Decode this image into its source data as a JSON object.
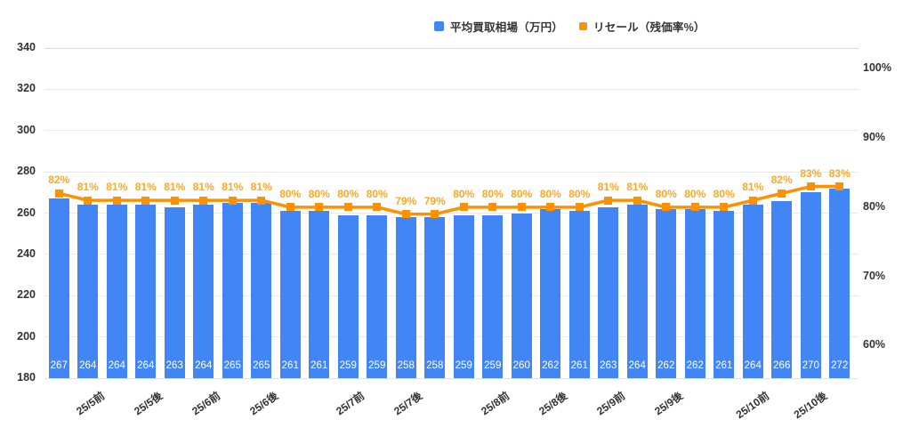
{
  "chart_data": {
    "type": "bar",
    "title": "",
    "legend": [
      {
        "label": "平均買取相場（万円）",
        "color": "#4285F4"
      },
      {
        "label": "リセール（残価率%）",
        "color": "#FF9100"
      }
    ],
    "series": [
      {
        "name": "平均買取相場（万円）",
        "type": "bar",
        "axis": "left",
        "color": "#4285F4",
        "values": [
          267,
          264,
          264,
          264,
          263,
          264,
          265,
          265,
          261,
          261,
          259,
          259,
          258,
          258,
          259,
          259,
          260,
          262,
          261,
          263,
          264,
          262,
          262,
          261,
          264,
          266,
          270,
          272
        ]
      },
      {
        "name": "リセール（残価率%）",
        "type": "line",
        "axis": "right",
        "color": "#FF9100",
        "label_color": "#FFA726",
        "values": [
          82,
          81,
          81,
          81,
          81,
          81,
          81,
          81,
          80,
          80,
          80,
          80,
          79,
          79,
          80,
          80,
          80,
          80,
          80,
          81,
          81,
          80,
          80,
          80,
          81,
          82,
          83,
          83
        ]
      }
    ],
    "x_axis": {
      "tick_labels": [
        {
          "text": "25/5前",
          "bar_index": 1
        },
        {
          "text": "25/5後",
          "bar_index": 3
        },
        {
          "text": "25/6前",
          "bar_index": 5
        },
        {
          "text": "25/6後",
          "bar_index": 7
        },
        {
          "text": "25/7前",
          "bar_index": 10
        },
        {
          "text": "25/7後",
          "bar_index": 12
        },
        {
          "text": "25/8前",
          "bar_index": 15
        },
        {
          "text": "25/8後",
          "bar_index": 17
        },
        {
          "text": "25/9前",
          "bar_index": 19
        },
        {
          "text": "25/9後",
          "bar_index": 21
        },
        {
          "text": "25/10前",
          "bar_index": 24
        },
        {
          "text": "25/10後",
          "bar_index": 26
        }
      ]
    },
    "left_axis": {
      "min": 180,
      "max": 340,
      "step": 20,
      "ticks": [
        340,
        320,
        300,
        280,
        260,
        240,
        220,
        200,
        180
      ]
    },
    "right_axis": {
      "min": 55.3,
      "max": 103.0,
      "ticks": [
        {
          "label": "100%",
          "value": 100
        },
        {
          "label": "90%",
          "value": 90
        },
        {
          "label": "80%",
          "value": 80
        },
        {
          "label": "70%",
          "value": 70
        },
        {
          "label": "60%",
          "value": 60
        }
      ]
    },
    "grid": true,
    "legend_position": "top"
  }
}
